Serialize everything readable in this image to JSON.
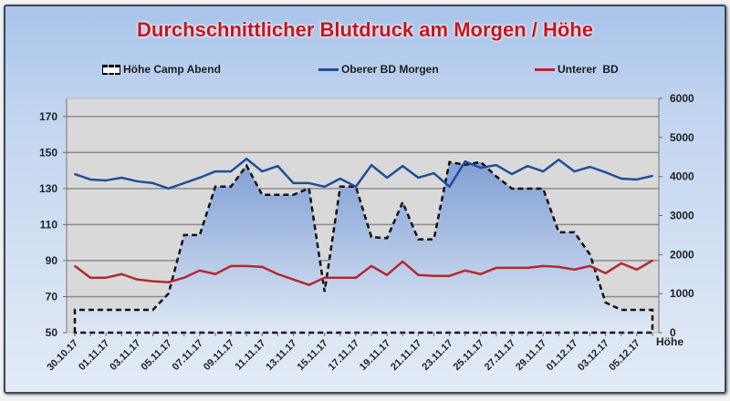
{
  "chart_data": {
    "type": "line",
    "title": "Durchschnittlicher Blutdruck am Morgen / Höhe",
    "x_tick_labels": [
      "30.10.17",
      "01.11.17",
      "03.11.17",
      "05.11.17",
      "07.11.17",
      "09.11.17",
      "11.11.17",
      "13.11.17",
      "15.11.17",
      "17.11.17",
      "19.11.17",
      "21.11.17",
      "23.11.17",
      "25.11.17",
      "27.11.17",
      "29.11.17",
      "01.12.17",
      "03.12.17",
      "05.12.17"
    ],
    "points_per_tick_label": 2,
    "left_axis": {
      "ylim": [
        50,
        180
      ],
      "ticks": [
        "50",
        "70",
        "90",
        "110",
        "130",
        "150",
        "170"
      ]
    },
    "right_axis": {
      "label": "Höhe",
      "ylim": [
        0,
        6000
      ],
      "ticks": [
        "0",
        "1000",
        "2000",
        "3000",
        "4000",
        "5000",
        "6000"
      ]
    },
    "grid": true,
    "legend_position": "top",
    "series": [
      {
        "name": "Höhe Camp Abend",
        "axis": "right",
        "style": "dashed-area",
        "color": "#000000",
        "values": [
          585,
          585,
          585,
          585,
          585,
          585,
          1000,
          2500,
          2500,
          3740,
          3740,
          4280,
          3530,
          3530,
          3530,
          3700,
          1050,
          3740,
          3740,
          2450,
          2420,
          3340,
          2390,
          2390,
          4370,
          4300,
          4370,
          4000,
          3690,
          3690,
          3690,
          2570,
          2570,
          2000,
          770,
          585,
          585,
          585
        ]
      },
      {
        "name": "Oberer BD Morgen",
        "axis": "left",
        "color": "#1f4e9a",
        "values": [
          138,
          135,
          134.5,
          136,
          134,
          133,
          130,
          133,
          136,
          139.5,
          139.5,
          146.5,
          139.5,
          142.5,
          133,
          133,
          131,
          135.5,
          131,
          143,
          136,
          142.5,
          136,
          138.5,
          131,
          145,
          141.5,
          143,
          138,
          142.5,
          139.5,
          146,
          139.5,
          142,
          139,
          135.5,
          135,
          137
        ]
      },
      {
        "name": "Unterer  BD",
        "axis": "left",
        "color": "#b3282d",
        "values": [
          87,
          80.5,
          80.5,
          82.5,
          79.5,
          78.5,
          78,
          80.5,
          84.5,
          82.5,
          87,
          87,
          86.5,
          82.5,
          79.5,
          76.5,
          80.5,
          80.5,
          80.5,
          87,
          82,
          89.5,
          82,
          81.5,
          81.5,
          84.5,
          82.5,
          86,
          86,
          86,
          87,
          86.5,
          85,
          87,
          83,
          88.5,
          85,
          90
        ]
      }
    ]
  },
  "colors": {
    "title": "#c8141b",
    "plot_bg": "#d9d9d9",
    "area_fill": "#8eaadb"
  }
}
